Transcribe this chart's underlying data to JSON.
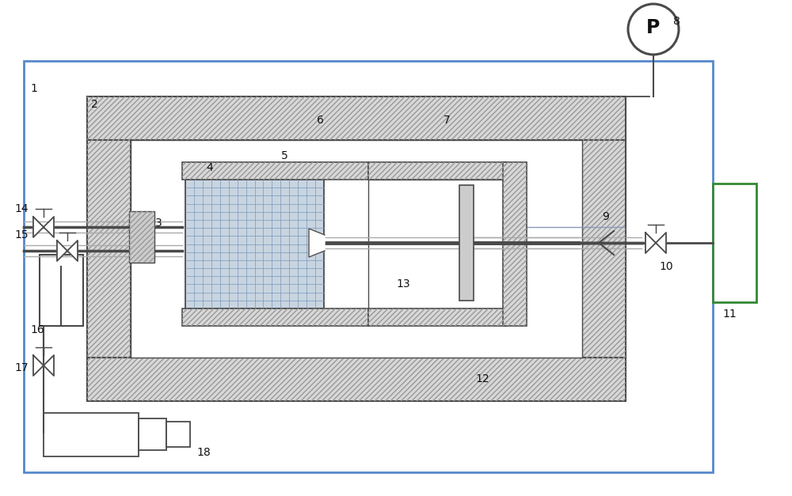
{
  "lc": "#4a4a4a",
  "lw_main": 1.3,
  "hatch_fc": "#d8d8d8",
  "grid_fc": "#c8d4e0",
  "white": "#ffffff",
  "blue_frame": "#3070b0",
  "label_fs": 10
}
